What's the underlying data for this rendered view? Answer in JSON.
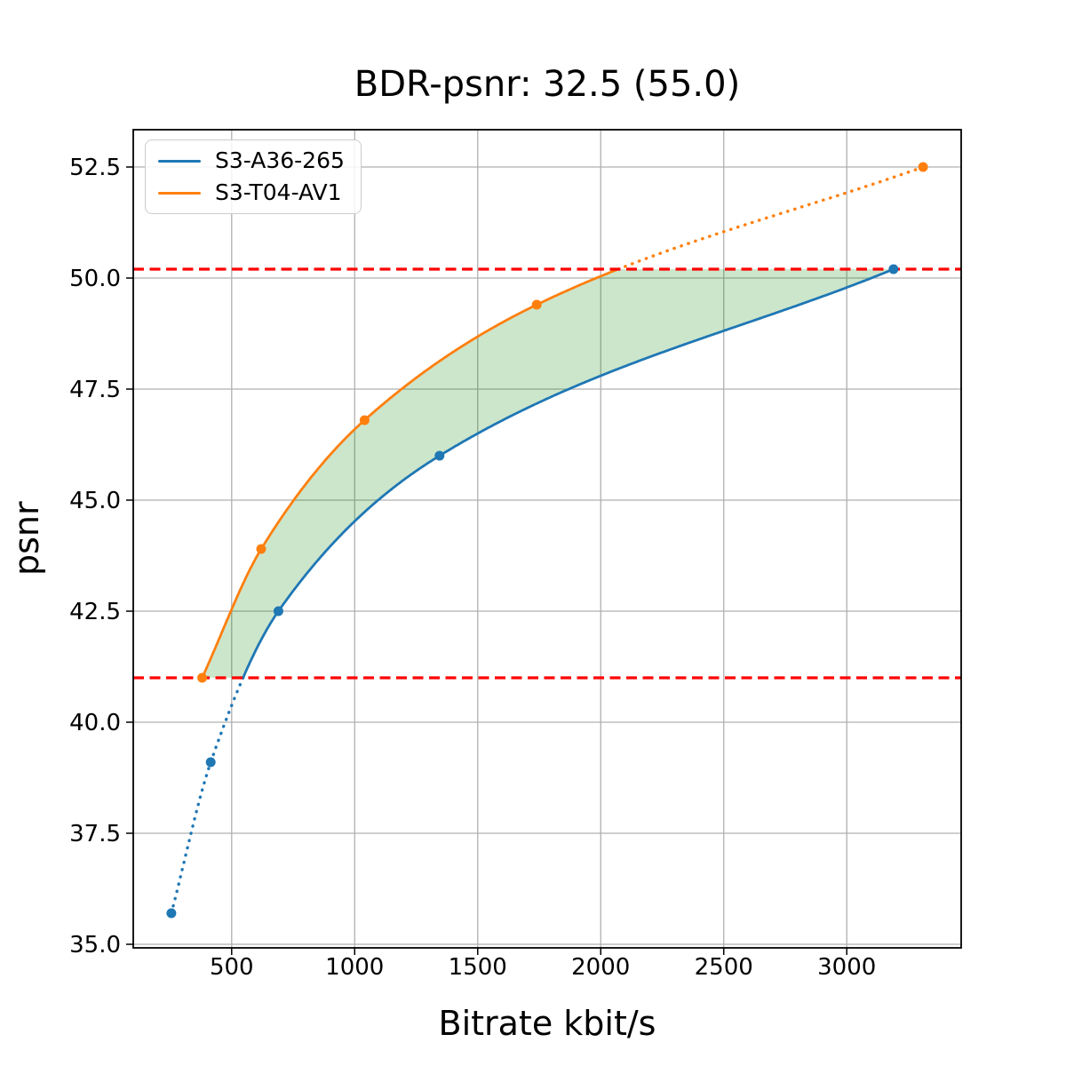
{
  "figure": {
    "background": "#ffffff"
  },
  "chart_data": {
    "type": "line",
    "title": "BDR-psnr: 32.5 (55.0)",
    "xlabel": "Bitrate kbit/s",
    "ylabel": "psnr",
    "xlim": [
      100,
      3465
    ],
    "ylim": [
      34.92,
      53.34
    ],
    "x_ticks": [
      500,
      1000,
      1500,
      2000,
      2500,
      3000
    ],
    "x_tick_labels": [
      "500",
      "1000",
      "1500",
      "2000",
      "2500",
      "3000"
    ],
    "y_ticks": [
      35.0,
      37.5,
      40.0,
      42.5,
      45.0,
      47.5,
      50.0,
      52.5
    ],
    "y_tick_labels": [
      "35.0",
      "37.5",
      "40.0",
      "42.5",
      "45.0",
      "47.5",
      "50.0",
      "52.5"
    ],
    "grid": true,
    "grid_color": "#b0b0b0",
    "legend_position": "upper left",
    "series": [
      {
        "name": "S3-A36-265",
        "color": "#1f77b4",
        "x": [
          255,
          415,
          690,
          1345,
          3190
        ],
        "y": [
          35.7,
          39.1,
          42.5,
          46.0,
          50.2
        ]
      },
      {
        "name": "S3-T04-AV1",
        "color": "#ff7f0e",
        "x": [
          380,
          620,
          1040,
          1740,
          3310
        ],
        "y": [
          41.0,
          43.9,
          46.8,
          49.4,
          52.5
        ]
      }
    ],
    "overlap_range_psnr": [
      41.0,
      50.2
    ],
    "reference_lines": {
      "color": "#ff0000",
      "style": "dashed",
      "y_values": [
        41.0,
        50.2
      ]
    },
    "shaded_region": {
      "fill": "#008000",
      "opacity": 0.2
    }
  }
}
